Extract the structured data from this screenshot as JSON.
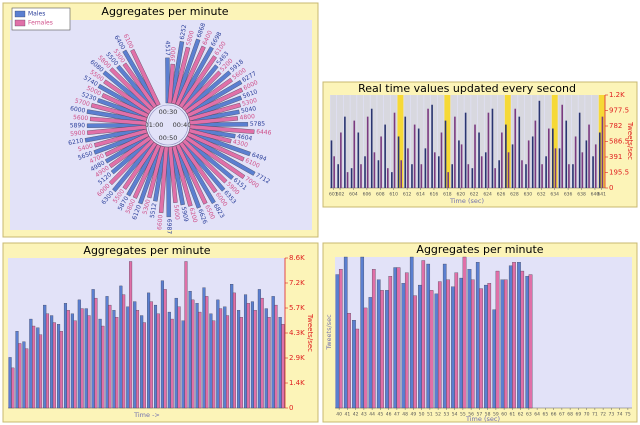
{
  "chart_data": [
    {
      "type": "radial_bar",
      "title": "Aggregates per minute",
      "legend": "top-left",
      "angular_ticks": [
        "00:30",
        "00:40",
        "00:50",
        "01:00"
      ],
      "rlim": [
        0,
        8000
      ],
      "series": [
        {
          "name": "Males",
          "color": "#5b7fd0",
          "label_color": "#2b3f9a",
          "values": [
            4517,
            6252,
            6868,
            6698,
            5463,
            5918,
            6277,
            5610,
            5040,
            5785,
            4604,
            6494,
            7712,
            6151,
            6353,
            6823,
            6626,
            5909,
            6987,
            5512,
            6120,
            5870,
            6300,
            5120,
            4980,
            5650,
            6210,
            5890,
            6000,
            5230,
            5740,
            6080,
            5500,
            6400
          ]
        },
        {
          "name": "Females",
          "color": "#e070a8",
          "label_color": "#d0508a",
          "values": [
            3900,
            5800,
            6400,
            6100,
            5200,
            5600,
            6000,
            5300,
            4800,
            6446,
            4300,
            6100,
            7000,
            5900,
            6000,
            6500,
            6200,
            5600,
            6600,
            5300,
            5800,
            5500,
            6000,
            4900,
            4700,
            5400,
            5900,
            5600,
            5700,
            5000,
            5500,
            5800,
            5300,
            6100
          ]
        }
      ]
    },
    {
      "type": "bar",
      "title": "Real time values updated every second",
      "x_label": "Time (sec)",
      "y2_label": "Tweets/sec",
      "x": [
        601,
        602,
        603,
        604,
        605,
        606,
        607,
        608,
        609,
        610,
        611,
        612,
        613,
        614,
        615,
        616,
        617,
        618,
        619,
        620,
        621,
        622,
        623,
        624,
        625,
        626,
        627,
        628,
        629,
        630,
        631,
        632,
        633,
        634,
        635,
        636,
        637,
        638,
        639,
        640,
        641
      ],
      "xlim": [
        600.5,
        641.5
      ],
      "xticks": [
        601,
        602,
        604,
        606,
        608,
        610,
        612,
        614,
        616,
        618,
        620,
        622,
        624,
        626,
        628,
        630,
        632,
        634,
        636,
        638,
        640,
        641
      ],
      "y2lim": [
        0,
        1173
      ],
      "y2ticks": [
        0,
        195.5,
        391,
        586.5,
        782,
        977.5,
        {
          "value": 1173,
          "label": "1.2K"
        }
      ],
      "series": [
        {
          "color": "#2a3570",
          "axis": "y2",
          "values": [
            600,
            300,
            900,
            250,
            700,
            400,
            1000,
            350,
            800,
            200,
            650,
            900,
            300,
            750,
            500,
            1050,
            400,
            850,
            300,
            600,
            950,
            250,
            700,
            450,
            1000,
            350,
            800,
            550,
            900,
            300,
            650,
            1100,
            400,
            750,
            500,
            850,
            300,
            950,
            600,
            400,
            700
          ]
        },
        {
          "color": "#7a3a80",
          "axis": "y2",
          "values": [
            400,
            700,
            200,
            850,
            300,
            900,
            450,
            650,
            250,
            950,
            350,
            500,
            800,
            300,
            1000,
            450,
            700,
            200,
            900,
            550,
            300,
            800,
            400,
            950,
            250,
            700,
            450,
            1000,
            350,
            600,
            850,
            300,
            750,
            500,
            1050,
            300,
            650,
            450,
            800,
            550,
            900
          ]
        }
      ]
    },
    {
      "type": "bar",
      "title": "Aggregates per minute",
      "x_label": "Time ->",
      "y2_label": "Tweets/sec",
      "y2lim": [
        0,
        8600
      ],
      "y2ticks": [
        0,
        {
          "value": 1433,
          "label": "1.4K"
        },
        {
          "value": 2867,
          "label": "2.9K"
        },
        {
          "value": 4300,
          "label": "4.3K"
        },
        {
          "value": 5733,
          "label": "5.7K"
        },
        {
          "value": 7167,
          "label": "7.2K"
        },
        {
          "value": 8600,
          "label": "8.6K"
        }
      ],
      "series": [
        {
          "color": "#5b7fd0",
          "axis": "y2",
          "values": [
            2900,
            4400,
            3800,
            5100,
            4600,
            5900,
            5300,
            4800,
            6000,
            5400,
            6200,
            5700,
            6800,
            5100,
            6400,
            5600,
            7000,
            5800,
            6100,
            5300,
            6600,
            5900,
            7300,
            5500,
            6300,
            5000,
            6700,
            6000,
            6900,
            5400,
            6200,
            5800,
            7100,
            5600,
            6500,
            6100,
            6800,
            5700,
            6400,
            5200
          ]
        },
        {
          "color": "#e070a8",
          "axis": "y2",
          "values": [
            2300,
            3700,
            3400,
            4700,
            4200,
            5400,
            4900,
            4400,
            5600,
            5000,
            5700,
            5300,
            6300,
            4700,
            5900,
            5200,
            6500,
            8400,
            5600,
            4900,
            6100,
            5400,
            6800,
            5100,
            5800,
            8400,
            6200,
            5500,
            6400,
            5000,
            5700,
            5300,
            6600,
            5200,
            6000,
            5600,
            6300,
            5200,
            5900,
            4800
          ]
        }
      ]
    },
    {
      "type": "bar",
      "title": "Aggregates per minute",
      "x_label": "Time (sec)",
      "y_label": "Tweets/sec",
      "x": [
        40,
        41,
        42,
        43,
        44,
        45,
        46,
        47,
        48,
        49,
        50,
        51,
        52,
        53,
        54,
        55,
        56,
        57,
        58,
        59,
        60,
        61,
        62,
        63
      ],
      "xlim": [
        39.5,
        75.5
      ],
      "xticks": [
        40,
        41,
        42,
        43,
        44,
        45,
        46,
        47,
        48,
        49,
        50,
        51,
        52,
        53,
        54,
        55,
        56,
        57,
        58,
        59,
        60,
        61,
        62,
        63,
        64,
        65,
        66,
        67,
        68,
        69,
        70,
        71,
        72,
        73,
        74,
        75
      ],
      "ylim": [
        0,
        8600
      ],
      "series": [
        {
          "color": "#5b7fd0",
          "values": [
            7600,
            8600,
            5000,
            8600,
            6300,
            7300,
            6700,
            8000,
            7100,
            8600,
            7000,
            8200,
            6500,
            8200,
            6900,
            7400,
            7900,
            8300,
            7000,
            5600,
            7300,
            8100,
            8300,
            7500
          ]
        },
        {
          "color": "#e070a8",
          "values": [
            7900,
            5400,
            4500,
            5700,
            7900,
            6700,
            7500,
            8000,
            7700,
            6400,
            8400,
            6700,
            7200,
            7300,
            7700,
            8600,
            7300,
            6800,
            7100,
            7800,
            7300,
            8300,
            7800,
            7600
          ]
        }
      ]
    }
  ]
}
